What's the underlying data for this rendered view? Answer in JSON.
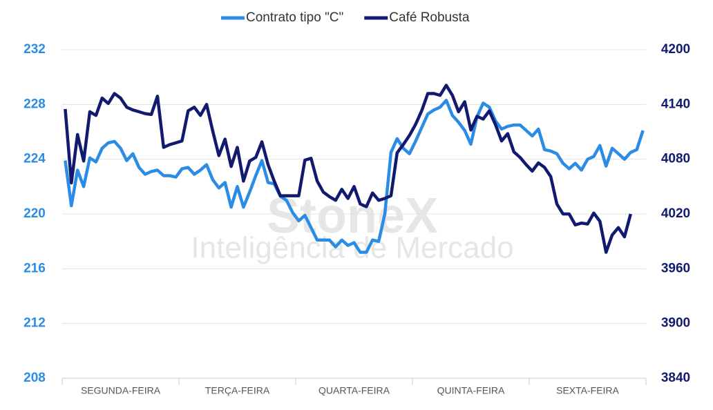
{
  "chart_data": {
    "type": "line",
    "watermark": [
      "StoneX",
      "Inteligência de Mercado"
    ],
    "categories": [
      null,
      null,
      null,
      null,
      null,
      null,
      null,
      null,
      null,
      "SEGUNDA-FEIRA",
      null,
      null,
      null,
      null,
      null,
      null,
      null,
      null,
      null,
      null,
      null,
      null,
      null,
      null,
      null,
      null,
      null,
      null,
      "TERÇA-FEIRA",
      null,
      null,
      null,
      null,
      null,
      null,
      null,
      null,
      null,
      null,
      null,
      null,
      null,
      null,
      null,
      null,
      null,
      null,
      "QUARTA-FEIRA",
      null,
      null,
      null,
      null,
      null,
      null,
      null,
      null,
      null,
      null,
      null,
      null,
      null,
      null,
      null,
      null,
      null,
      null,
      "QUINTA-FEIRA",
      null,
      null,
      null,
      null,
      null,
      null,
      null,
      null,
      null,
      null,
      null,
      null,
      null,
      null,
      null,
      null,
      null,
      null,
      "SEXTA-FEIRA",
      null,
      null,
      null,
      null,
      null,
      null,
      null,
      null,
      null
    ],
    "series": [
      {
        "name": "Contrato tipo \"C\"",
        "color": "#2b8ce6",
        "axis": "y",
        "values": [
          223.9,
          220.6,
          223.2,
          222.0,
          224.1,
          223.8,
          224.8,
          225.2,
          225.3,
          224.8,
          223.9,
          224.4,
          223.4,
          222.9,
          223.1,
          223.2,
          222.8,
          222.8,
          222.7,
          223.3,
          223.4,
          222.9,
          223.2,
          223.6,
          222.5,
          221.9,
          222.3,
          220.5,
          222.0,
          220.5,
          221.6,
          222.8,
          223.9,
          222.3,
          222.2,
          221.3,
          221.0,
          220.1,
          219.5,
          219.9,
          219.0,
          218.1,
          218.1,
          218.1,
          217.6,
          218.1,
          217.7,
          217.9,
          217.2,
          217.2,
          218.1,
          218.0,
          220.0,
          224.5,
          225.5,
          224.8,
          224.4,
          225.3,
          226.3,
          227.3,
          227.6,
          227.8,
          228.3,
          227.2,
          226.7,
          226.1,
          225.1,
          227.1,
          228.1,
          227.8,
          226.8,
          226.2,
          226.4,
          226.5,
          226.5,
          226.1,
          225.7,
          226.2,
          224.7,
          224.6,
          224.4,
          223.7,
          223.3,
          223.7,
          223.2,
          224.0,
          224.2,
          225.0,
          223.5,
          224.8,
          224.4,
          224.0,
          224.5,
          224.7,
          226.1
        ]
      },
      {
        "name": "Café Robusta",
        "color": "#111a6e",
        "axis": "y2",
        "values": [
          4135,
          4054,
          4107,
          4078,
          4132,
          4128,
          4147,
          4141,
          4152,
          4147,
          4137,
          4134,
          4132,
          4130,
          4129,
          4149,
          4093,
          4096,
          4098,
          4100,
          4133,
          4137,
          4128,
          4140,
          4111,
          4084,
          4102,
          4072,
          4093,
          4056,
          4078,
          4082,
          4099,
          4074,
          4056,
          4040,
          4040,
          4040,
          4040,
          4079,
          4081,
          4056,
          4044,
          4039,
          4035,
          4047,
          4037,
          4050,
          4031,
          4028,
          4043,
          4035,
          4037,
          4040,
          4087,
          4096,
          4106,
          4118,
          4133,
          4152,
          4152,
          4150,
          4161,
          4150,
          4132,
          4143,
          4112,
          4127,
          4124,
          4133,
          4118,
          4100,
          4108,
          4088,
          4082,
          4074,
          4067,
          4076,
          4071,
          4061,
          4031,
          4020,
          4020,
          4008,
          4010,
          4009,
          4021,
          4012,
          3978,
          3997,
          4005,
          3995,
          4020,
          null,
          null
        ]
      }
    ],
    "ylim": [
      208,
      232
    ],
    "yticks": [
      208,
      212,
      216,
      220,
      224,
      228,
      232
    ],
    "ytick_color": "#2b8ce6",
    "y2lim": [
      3840,
      4200
    ],
    "y2ticks": [
      3840,
      3900,
      3960,
      4020,
      4080,
      4140,
      4200
    ],
    "y2tick_color": "#111a6e",
    "grid": true,
    "legend": "top"
  }
}
